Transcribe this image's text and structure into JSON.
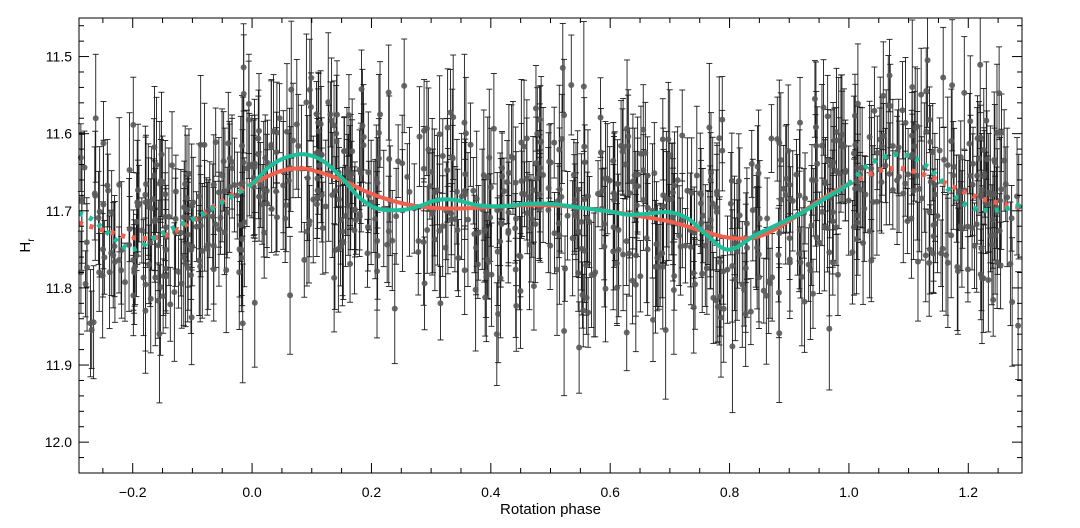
{
  "chart_data": {
    "type": "scatter",
    "xlabel": "Rotation phase",
    "ylabel": "H",
    "ylabel_subscript": "r",
    "xlim": [
      -0.29,
      1.29
    ],
    "ylim": [
      12.04,
      11.45
    ],
    "y_inverted": true,
    "grid": false,
    "legend": "none",
    "x_major_ticks": [
      -0.2,
      0.0,
      0.2,
      0.4,
      0.6,
      0.8,
      1.0,
      1.2
    ],
    "x_tick_labels": [
      "−0.2",
      "0.0",
      "0.2",
      "0.4",
      "0.6",
      "0.8",
      "1.0",
      "1.2"
    ],
    "y_major_ticks": [
      11.5,
      11.6,
      11.7,
      11.8,
      11.9,
      12.0
    ],
    "y_tick_labels": [
      "11.5",
      "11.6",
      "11.7",
      "11.8",
      "11.9",
      "12.0"
    ],
    "scatter": {
      "point_count": 900,
      "phase_range": [
        -0.29,
        1.29
      ],
      "typical_error": 0.06,
      "mean_level": 11.705,
      "scatter_sigma": 0.065,
      "color": "#595959"
    },
    "series": [
      {
        "color": "#f0604d",
        "x": [
          0.0,
          0.05,
          0.08,
          0.1,
          0.15,
          0.2,
          0.25,
          0.3,
          0.35,
          0.4,
          0.45,
          0.5,
          0.55,
          0.6,
          0.65,
          0.7,
          0.75,
          0.8,
          0.85,
          0.9,
          0.95,
          1.0
        ],
        "y": [
          11.665,
          11.648,
          11.645,
          11.647,
          11.66,
          11.678,
          11.69,
          11.696,
          11.697,
          11.695,
          11.693,
          11.693,
          11.696,
          11.701,
          11.707,
          11.714,
          11.725,
          11.735,
          11.733,
          11.713,
          11.687,
          11.665
        ]
      },
      {
        "color": "#1cbf9a",
        "x": [
          0.0,
          0.03,
          0.06,
          0.09,
          0.12,
          0.15,
          0.18,
          0.21,
          0.25,
          0.28,
          0.31,
          0.34,
          0.38,
          0.42,
          0.46,
          0.5,
          0.55,
          0.6,
          0.63,
          0.66,
          0.7,
          0.73,
          0.76,
          0.79,
          0.81,
          0.84,
          0.88,
          0.92,
          0.96,
          1.0
        ],
        "y": [
          11.665,
          11.642,
          11.63,
          11.627,
          11.636,
          11.657,
          11.683,
          11.697,
          11.699,
          11.694,
          11.686,
          11.686,
          11.693,
          11.694,
          11.691,
          11.691,
          11.696,
          11.701,
          11.705,
          11.704,
          11.702,
          11.71,
          11.73,
          11.749,
          11.748,
          11.733,
          11.718,
          11.703,
          11.684,
          11.665
        ]
      }
    ],
    "outside_range_style": "dotted"
  }
}
